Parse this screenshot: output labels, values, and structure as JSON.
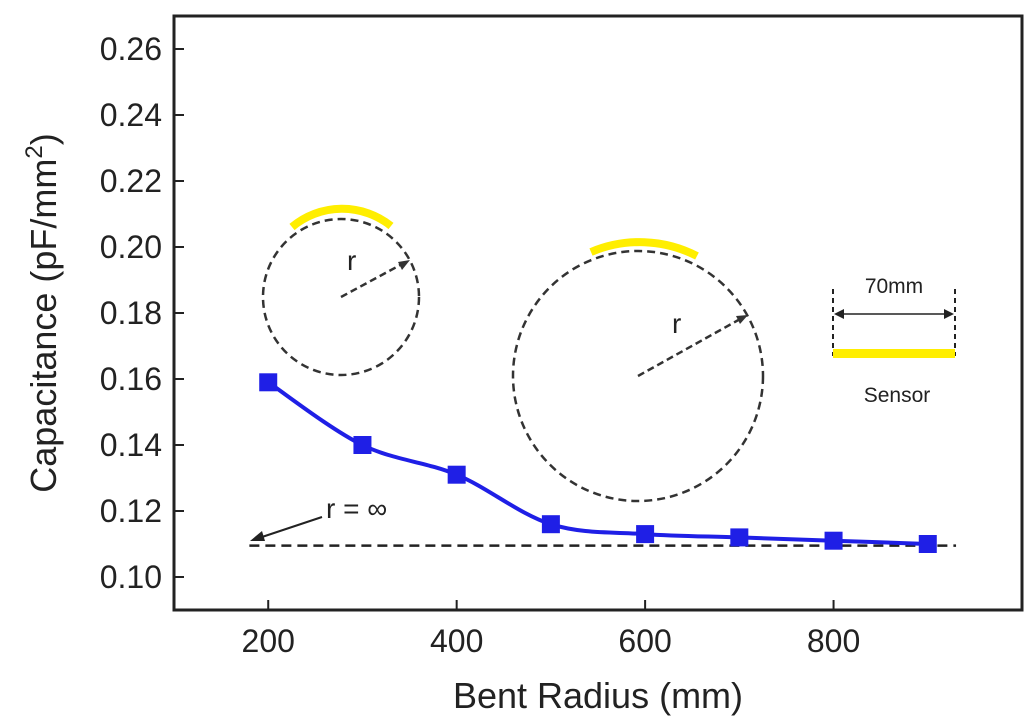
{
  "chart_data": {
    "type": "line",
    "title": "",
    "xlabel": "Bent Radius (mm)",
    "ylabel_main": "Capacitance (pF/mm",
    "ylabel_sup": "2",
    "ylabel_end": ")",
    "xlim": [
      100,
      1000
    ],
    "ylim": [
      0.09,
      0.27
    ],
    "x_ticks": [
      200,
      400,
      600,
      800
    ],
    "x_tick_labels": [
      "200",
      "400",
      "600",
      "800"
    ],
    "y_ticks": [
      0.1,
      0.12,
      0.14,
      0.16,
      0.18,
      0.2,
      0.22,
      0.24,
      0.26
    ],
    "y_tick_labels": [
      "0.10",
      "0.12",
      "0.14",
      "0.16",
      "0.18",
      "0.20",
      "0.22",
      "0.24",
      "0.26"
    ],
    "series": [
      {
        "name": "Capacitance",
        "color": "#1f1fe6",
        "marker": "square",
        "x": [
          200,
          300,
          400,
          500,
          600,
          700,
          800,
          900
        ],
        "values": [
          0.159,
          0.14,
          0.131,
          0.116,
          0.113,
          0.112,
          0.111,
          0.11
        ]
      }
    ],
    "reference_line": {
      "y": 0.1095,
      "x_range": [
        180,
        930
      ],
      "style": "dashed",
      "label": "r = ∞"
    },
    "annotations": {
      "radius_label": "r",
      "dimension_label": "70mm",
      "sensor_label": "Sensor",
      "sensor_color": "#ffee00"
    }
  }
}
